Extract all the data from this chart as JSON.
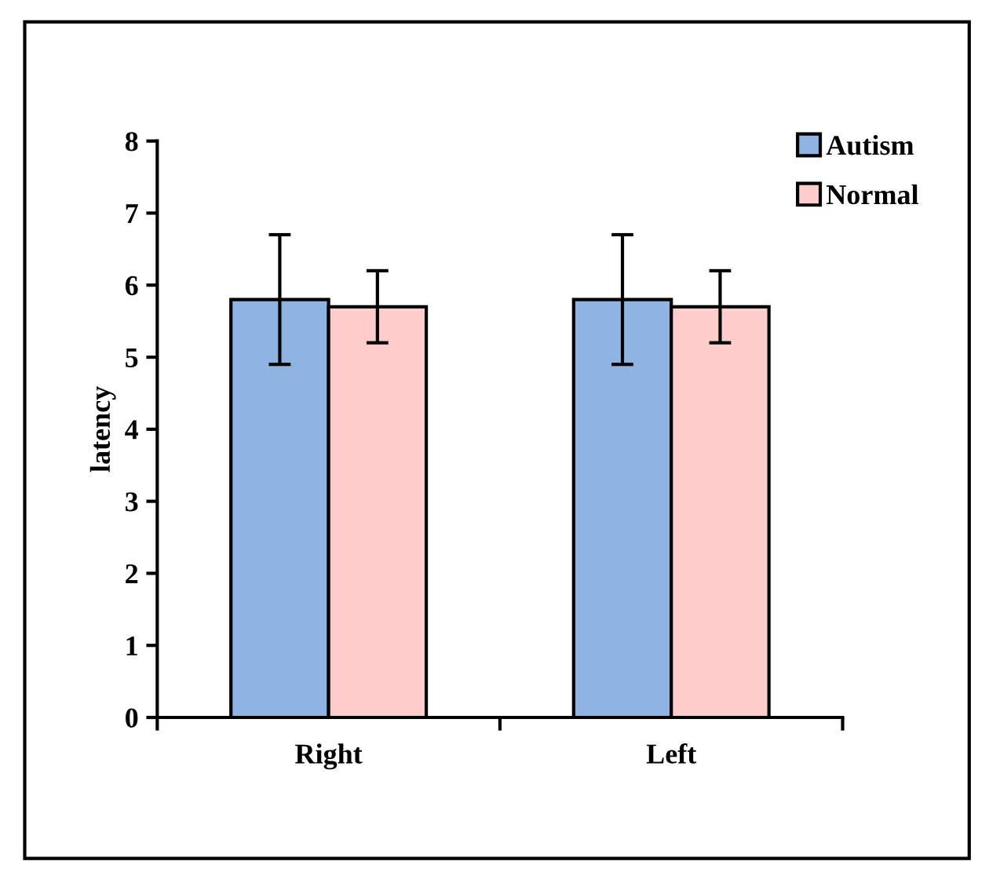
{
  "chart_data": {
    "type": "bar",
    "ylabel": "latency",
    "categories": [
      "Right",
      "Left"
    ],
    "series": [
      {
        "name": "Autism",
        "color": "#8eb4e3",
        "values": [
          5.8,
          5.8
        ],
        "errors": [
          0.9,
          0.9
        ]
      },
      {
        "name": "Normal",
        "color": "#ffcccc",
        "values": [
          5.7,
          5.7
        ],
        "errors": [
          0.5,
          0.5
        ]
      }
    ],
    "ylim": [
      0,
      8
    ],
    "yticks": [
      0,
      1,
      2,
      3,
      4,
      5,
      6,
      7,
      8
    ],
    "grid": false,
    "legend": "top right"
  }
}
